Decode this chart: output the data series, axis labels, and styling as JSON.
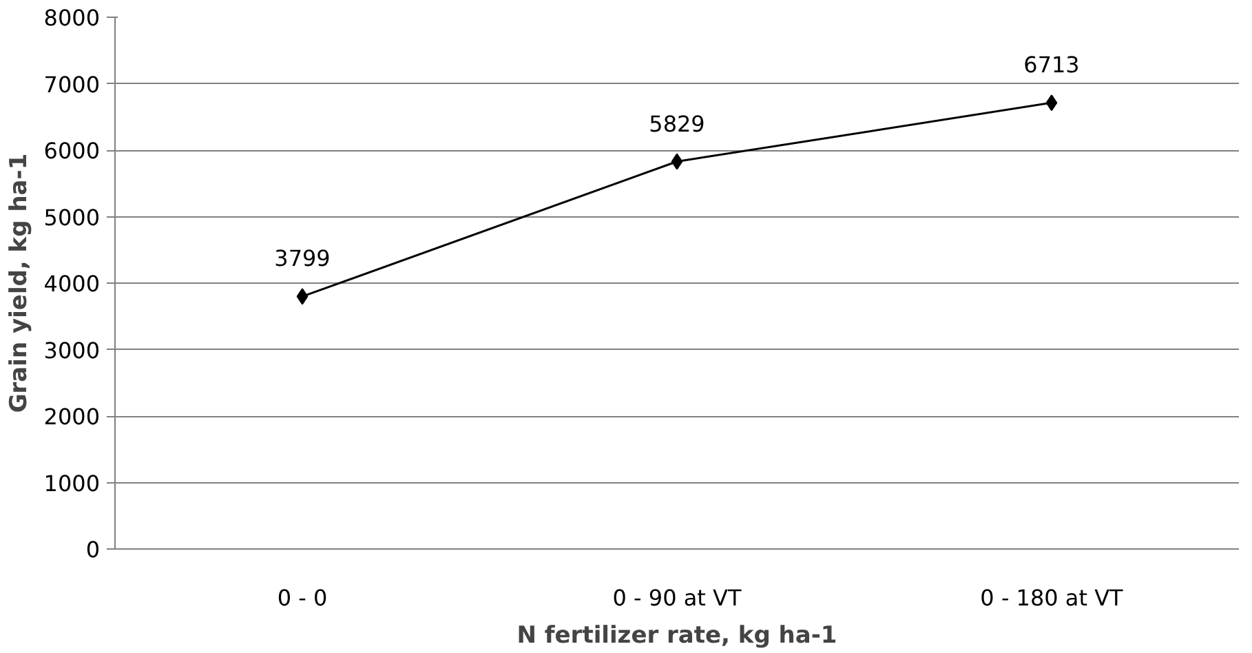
{
  "chart_data": {
    "type": "line",
    "xlabel": "N fertilizer rate, kg ha-1",
    "ylabel": "Grain yield, kg ha-1",
    "categories": [
      "0 - 0",
      "0 - 90 at VT",
      "0 - 180 at VT"
    ],
    "series": [
      {
        "color": "#000000",
        "values": [
          3799,
          5829,
          6713
        ]
      }
    ],
    "ylim": [
      0,
      8000
    ],
    "yticks": [
      0,
      1000,
      2000,
      3000,
      4000,
      5000,
      6000,
      7000,
      8000
    ],
    "grid": "y",
    "marker": "diamond",
    "line_style": "solid",
    "data_labels": true
  }
}
